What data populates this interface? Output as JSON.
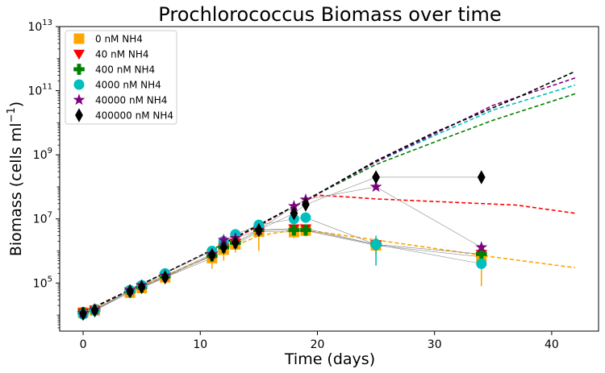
{
  "chart_data": {
    "type": "scatter",
    "title": "Prochlorococcus Biomass over time",
    "xlabel": "Time (days)",
    "ylabel_main": "Biomass (cells  ml",
    "ylabel_sup": "−1",
    "ylabel_close": ")",
    "xlim": [
      -2,
      44
    ],
    "ylim_log10": [
      3.5,
      13
    ],
    "yscale": "log",
    "x_ticks": [
      0,
      10,
      20,
      30,
      40
    ],
    "y_ticks": [
      {
        "base": "10",
        "exp": "5",
        "value": 5
      },
      {
        "base": "10",
        "exp": "7",
        "value": 7
      },
      {
        "base": "10",
        "exp": "9",
        "value": 9
      },
      {
        "base": "10",
        "exp": "11",
        "value": 11
      },
      {
        "base": "10",
        "exp": "13",
        "value": 13
      }
    ],
    "legend_position": "top-left",
    "series": [
      {
        "name": "0 nM NH4",
        "color": "#ffa500",
        "marker": "square",
        "x": [
          0,
          1,
          4,
          5,
          7,
          11,
          12,
          13,
          15,
          18,
          19,
          25,
          34
        ],
        "y": [
          12000,
          14000,
          50000,
          70000,
          150000,
          600000,
          1100000,
          1600000,
          4000000,
          3900000,
          4300000,
          1500000,
          650000
        ],
        "err_low": [
          10000,
          12000,
          40000,
          55000,
          110000,
          280000,
          500000,
          900000,
          1000000,
          2500000,
          2800000,
          700000,
          80000
        ],
        "err_high": [
          14000,
          16000,
          60000,
          85000,
          190000,
          900000,
          1700000,
          2300000,
          7000000,
          5500000,
          6000000,
          2500000,
          1200000
        ],
        "model_x": [
          0,
          5,
          10,
          15,
          18,
          20,
          25,
          30,
          35,
          42
        ],
        "model_y": [
          12000,
          80000,
          500000,
          3000000,
          4500000,
          4000000,
          2200000,
          1200000,
          650000,
          300000
        ]
      },
      {
        "name": "40 nM NH4",
        "color": "#ff0000",
        "marker": "triangle-down",
        "x": [
          0,
          1,
          4,
          5,
          7,
          11,
          12,
          13,
          15,
          18,
          19,
          25,
          34
        ],
        "y": [
          12000,
          14500,
          55000,
          75000,
          160000,
          700000,
          1300000,
          1800000,
          4500000,
          5000000,
          5000000,
          1600000,
          800000
        ],
        "model_x": [
          0,
          5,
          10,
          15,
          18,
          20,
          22,
          25,
          30,
          37,
          42
        ],
        "model_y": [
          12000,
          90000,
          700000,
          6000000,
          25000000,
          55000000,
          50000000,
          42000000,
          35000000,
          27000000,
          15000000
        ]
      },
      {
        "name": "400 nM NH4",
        "color": "#008000",
        "marker": "plus",
        "x": [
          0,
          1,
          4,
          5,
          7,
          11,
          12,
          13,
          15,
          18,
          19,
          25,
          34
        ],
        "y": [
          12000,
          14500,
          55000,
          75000,
          160000,
          700000,
          1300000,
          1800000,
          4500000,
          4500000,
          4500000,
          1600000,
          800000
        ],
        "model_x": [
          0,
          10,
          20,
          25,
          30,
          35,
          42
        ],
        "model_y": [
          12000,
          700000,
          60000000,
          500000000,
          2500000000,
          12000000000,
          80000000000
        ]
      },
      {
        "name": "4000 nM NH4",
        "color": "#00bfbf",
        "marker": "circle",
        "x": [
          0,
          1,
          4,
          5,
          7,
          11,
          12,
          13,
          15,
          18,
          19,
          25,
          34
        ],
        "y": [
          10500,
          14000,
          60000,
          85000,
          200000,
          1000000,
          2000000,
          3300000,
          6500000,
          10000000,
          11000000,
          1600000,
          400000
        ],
        "err_low": [
          9000,
          12000,
          50000,
          70000,
          160000,
          800000,
          1600000,
          2700000,
          5000000,
          8000000,
          8000000,
          350000,
          300000
        ],
        "err_high": [
          12000,
          16000,
          70000,
          100000,
          240000,
          1200000,
          2400000,
          4000000,
          8000000,
          12000000,
          14000000,
          3000000,
          500000
        ],
        "model_x": [
          0,
          10,
          20,
          25,
          30,
          35,
          42
        ],
        "model_y": [
          12000,
          700000,
          60000000,
          600000000,
          4000000000,
          25000000000,
          150000000000
        ]
      },
      {
        "name": "40000 nM NH4",
        "color": "#800080",
        "marker": "star",
        "x": [
          0,
          1,
          4,
          5,
          7,
          11,
          12,
          13,
          15,
          18,
          19,
          25,
          34
        ],
        "y": [
          11500,
          15000,
          60000,
          85000,
          170000,
          800000,
          2200000,
          2500000,
          4500000,
          25000000,
          40000000,
          100000000,
          1300000
        ],
        "model_x": [
          0,
          10,
          20,
          25,
          30,
          35,
          42
        ],
        "model_y": [
          12000,
          700000,
          60000000,
          600000000,
          4500000000,
          35000000000,
          250000000000
        ]
      },
      {
        "name": "400000 nM NH4",
        "color": "#000000",
        "marker": "diamond",
        "x": [
          0,
          1,
          4,
          5,
          7,
          11,
          12,
          13,
          15,
          18,
          19,
          25,
          34
        ],
        "y": [
          11000,
          14000,
          55000,
          75000,
          150000,
          750000,
          1300000,
          1800000,
          4500000,
          15000000,
          28000000,
          200000000,
          200000000
        ],
        "model_x": [
          0,
          10,
          20,
          25,
          30,
          37,
          42
        ],
        "model_y": [
          12000,
          700000,
          60000000,
          650000000,
          5000000000,
          60000000000,
          400000000000
        ]
      }
    ]
  }
}
